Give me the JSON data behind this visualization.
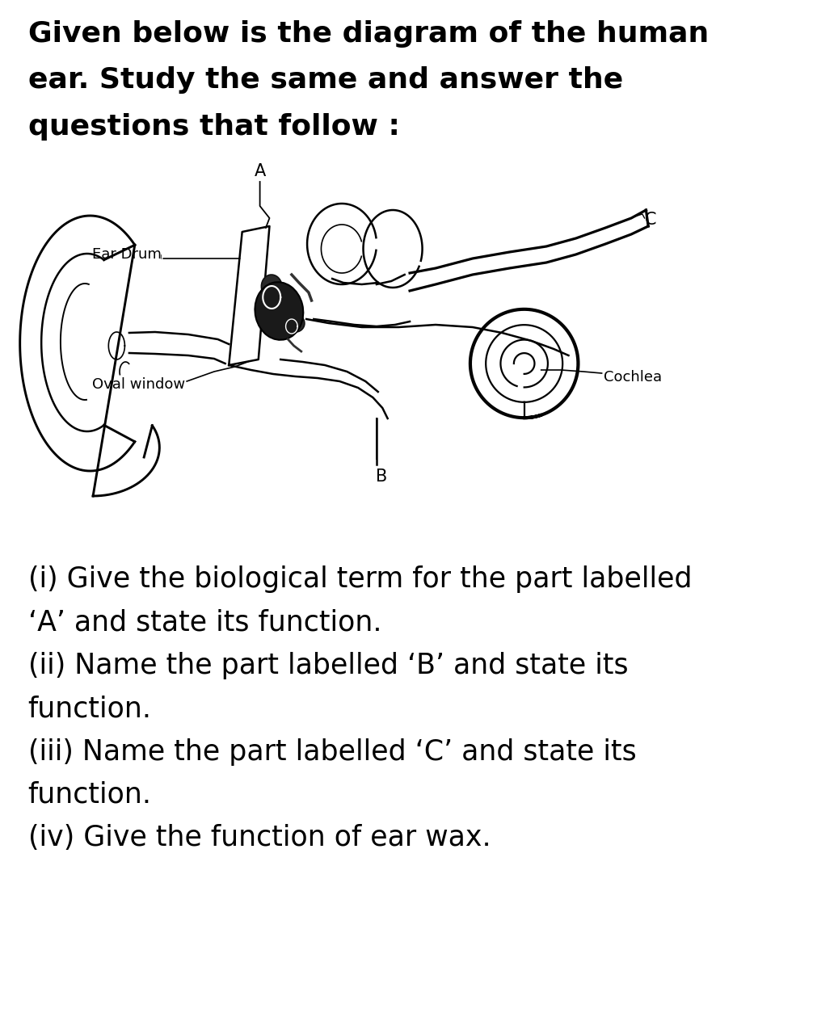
{
  "bg_color": "#ffffff",
  "title_lines": [
    "Given below is the diagram of the human",
    "ear. Study the same and answer the",
    "questions that follow :"
  ],
  "title_fontsize": 26,
  "title_bold": true,
  "q_lines": [
    "(i) Give the biological term for the part labelled",
    "‘A’ and state its function.",
    "(ii) Name the part labelled ‘B’ and state its",
    "function.",
    "(iii) Name the part labelled ‘C’ and state its",
    "function.",
    "(iv) Give the function of ear wax."
  ],
  "q_fontsize": 25,
  "text_color": "#000000",
  "lw": 1.8
}
